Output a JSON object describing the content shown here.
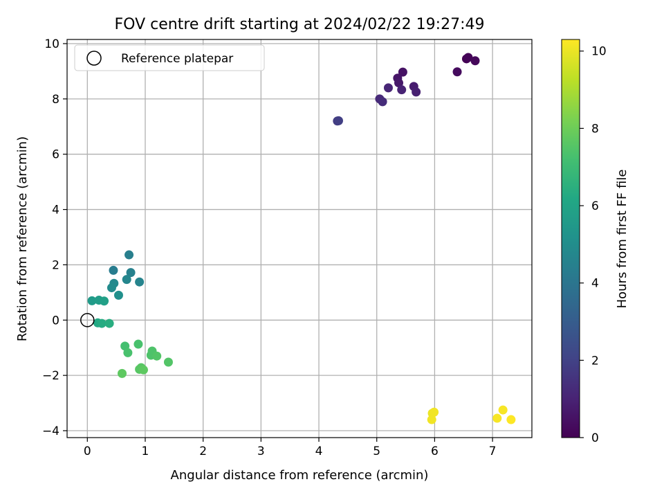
{
  "chart_data": {
    "type": "scatter",
    "title": "FOV centre drift starting at 2024/02/22 19:27:49",
    "xlabel": "Angular distance from reference (arcmin)",
    "ylabel": "Rotation from reference (arcmin)",
    "xlim": [
      -0.35,
      7.68
    ],
    "ylim": [
      -4.25,
      10.15
    ],
    "xticks": [
      "0",
      "1",
      "2",
      "3",
      "4",
      "5",
      "6",
      "7"
    ],
    "yticks": [
      "−4",
      "−2",
      "0",
      "2",
      "4",
      "6",
      "8",
      "10"
    ],
    "grid": true,
    "legend": {
      "location": "upper-left",
      "entries": [
        "Reference platepar"
      ]
    },
    "reference_point": {
      "x": 0,
      "y": 0
    },
    "colorbar": {
      "label": "Hours from first FF file",
      "colormap": "viridis",
      "min": 0,
      "max": 10.3,
      "ticks": [
        "0",
        "2",
        "4",
        "6",
        "8",
        "10"
      ]
    },
    "points": [
      {
        "x": 6.55,
        "y": 9.45,
        "hours": 0.0
      },
      {
        "x": 6.58,
        "y": 9.5,
        "hours": 0.1
      },
      {
        "x": 6.7,
        "y": 9.38,
        "hours": 0.2
      },
      {
        "x": 6.39,
        "y": 8.98,
        "hours": 0.3
      },
      {
        "x": 5.45,
        "y": 8.97,
        "hours": 0.5
      },
      {
        "x": 5.36,
        "y": 8.75,
        "hours": 0.6
      },
      {
        "x": 5.38,
        "y": 8.58,
        "hours": 0.7
      },
      {
        "x": 5.64,
        "y": 8.45,
        "hours": 0.8
      },
      {
        "x": 5.68,
        "y": 8.25,
        "hours": 0.9
      },
      {
        "x": 5.43,
        "y": 8.33,
        "hours": 1.0
      },
      {
        "x": 5.2,
        "y": 8.4,
        "hours": 1.1
      },
      {
        "x": 5.05,
        "y": 8.0,
        "hours": 1.2
      },
      {
        "x": 5.1,
        "y": 7.9,
        "hours": 1.3
      },
      {
        "x": 4.32,
        "y": 7.2,
        "hours": 1.8
      },
      {
        "x": 4.34,
        "y": 7.21,
        "hours": 1.9
      },
      {
        "x": 0.45,
        "y": 1.8,
        "hours": 4.3
      },
      {
        "x": 0.72,
        "y": 2.36,
        "hours": 4.4
      },
      {
        "x": 0.75,
        "y": 1.72,
        "hours": 4.5
      },
      {
        "x": 0.9,
        "y": 1.38,
        "hours": 4.6
      },
      {
        "x": 0.68,
        "y": 1.47,
        "hours": 4.7
      },
      {
        "x": 0.46,
        "y": 1.33,
        "hours": 4.8
      },
      {
        "x": 0.42,
        "y": 1.17,
        "hours": 4.9
      },
      {
        "x": 0.54,
        "y": 0.9,
        "hours": 5.1
      },
      {
        "x": 0.08,
        "y": 0.7,
        "hours": 5.6
      },
      {
        "x": 0.2,
        "y": 0.72,
        "hours": 5.7
      },
      {
        "x": 0.29,
        "y": 0.69,
        "hours": 5.8
      },
      {
        "x": 0.18,
        "y": -0.1,
        "hours": 6.2
      },
      {
        "x": 0.25,
        "y": -0.12,
        "hours": 6.3
      },
      {
        "x": 0.38,
        "y": -0.12,
        "hours": 6.4
      },
      {
        "x": 0.65,
        "y": -0.94,
        "hours": 7.2
      },
      {
        "x": 0.88,
        "y": -0.87,
        "hours": 7.3
      },
      {
        "x": 0.7,
        "y": -1.18,
        "hours": 7.3
      },
      {
        "x": 1.12,
        "y": -1.12,
        "hours": 7.4
      },
      {
        "x": 1.1,
        "y": -1.27,
        "hours": 7.4
      },
      {
        "x": 1.2,
        "y": -1.3,
        "hours": 7.5
      },
      {
        "x": 1.4,
        "y": -1.52,
        "hours": 7.5
      },
      {
        "x": 0.93,
        "y": -1.72,
        "hours": 7.6
      },
      {
        "x": 0.9,
        "y": -1.78,
        "hours": 7.6
      },
      {
        "x": 0.97,
        "y": -1.8,
        "hours": 7.7
      },
      {
        "x": 0.6,
        "y": -1.93,
        "hours": 7.7
      },
      {
        "x": 5.96,
        "y": -3.37,
        "hours": 10.0
      },
      {
        "x": 5.99,
        "y": -3.33,
        "hours": 10.1
      },
      {
        "x": 5.95,
        "y": -3.6,
        "hours": 10.1
      },
      {
        "x": 7.18,
        "y": -3.25,
        "hours": 10.2
      },
      {
        "x": 7.08,
        "y": -3.55,
        "hours": 10.2
      },
      {
        "x": 7.32,
        "y": -3.6,
        "hours": 10.3
      }
    ]
  }
}
